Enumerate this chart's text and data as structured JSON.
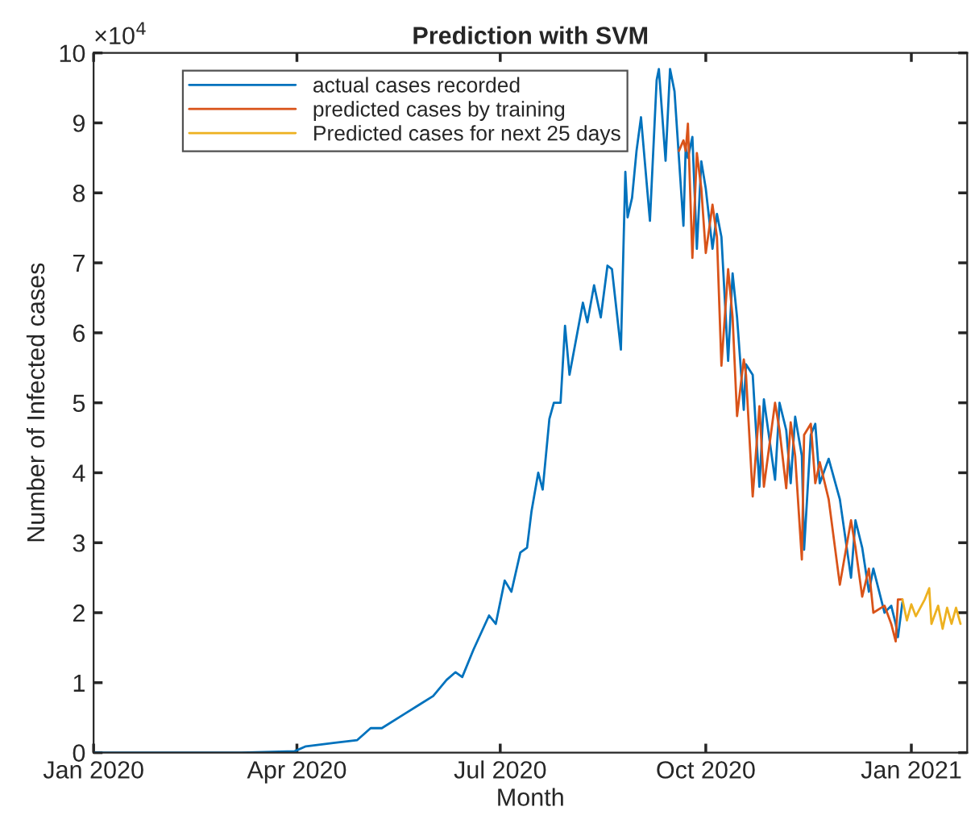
{
  "chart_data": {
    "type": "line",
    "title": "Prediction with SVM",
    "xlabel": "Month",
    "ylabel": "Number of Infected cases",
    "annotations": [
      "×10$^{4}$"
    ],
    "xlim": [
      "2020-01-01",
      "2021-01-26"
    ],
    "xticks": [
      {
        "value": "2020-01-01",
        "label": "Jan 2020"
      },
      {
        "value": "2020-04-01",
        "label": "Apr 2020"
      },
      {
        "value": "2020-07-01",
        "label": "Jul 2020"
      },
      {
        "value": "2020-10-01",
        "label": "Oct 2020"
      },
      {
        "value": "2021-01-01",
        "label": "Jan 2021"
      }
    ],
    "ylim": [
      0,
      10
    ],
    "yticks": [
      0,
      1,
      2,
      3,
      4,
      5,
      6,
      7,
      8,
      9,
      10
    ],
    "legend": "top left",
    "line_style": "solid",
    "series": [
      {
        "name": "actual cases recorded",
        "color": "#0072bd",
        "x": [
          "2020-01-01",
          "2020-03-07",
          "2020-03-31",
          "2020-04-05",
          "2020-04-18",
          "2020-04-28",
          "2020-05-04",
          "2020-05-09",
          "2020-05-19",
          "2020-05-26",
          "2020-06-01",
          "2020-06-07",
          "2020-06-11",
          "2020-06-14",
          "2020-06-19",
          "2020-06-26",
          "2020-06-29",
          "2020-07-03",
          "2020-07-06",
          "2020-07-10",
          "2020-07-13",
          "2020-07-15",
          "2020-07-18",
          "2020-07-20",
          "2020-07-23",
          "2020-07-25",
          "2020-07-28",
          "2020-07-30",
          "2020-08-01",
          "2020-08-07",
          "2020-08-09",
          "2020-08-12",
          "2020-08-15",
          "2020-08-18",
          "2020-08-20",
          "2020-08-24",
          "2020-08-26",
          "2020-08-27",
          "2020-08-29",
          "2020-08-31",
          "2020-09-02",
          "2020-09-06",
          "2020-09-09",
          "2020-09-10",
          "2020-09-13",
          "2020-09-15",
          "2020-09-17",
          "2020-09-21",
          "2020-09-22",
          "2020-09-23",
          "2020-09-25",
          "2020-09-27",
          "2020-09-29",
          "2020-10-01",
          "2020-10-04",
          "2020-10-06",
          "2020-10-08",
          "2020-10-11",
          "2020-10-13",
          "2020-10-15",
          "2020-10-18",
          "2020-10-19",
          "2020-10-22",
          "2020-10-25",
          "2020-10-27",
          "2020-11-01",
          "2020-11-03",
          "2020-11-06",
          "2020-11-08",
          "2020-11-10",
          "2020-11-13",
          "2020-11-14",
          "2020-11-17",
          "2020-11-19",
          "2020-11-21",
          "2020-11-25",
          "2020-11-30",
          "2020-12-05",
          "2020-12-07",
          "2020-12-10",
          "2020-12-13",
          "2020-12-15",
          "2020-12-20",
          "2020-12-23",
          "2020-12-25",
          "2020-12-26",
          "2020-12-28"
        ],
        "values": [
          0,
          0,
          0.02,
          0.09,
          0.14,
          0.18,
          0.35,
          0.35,
          0.55,
          0.69,
          0.81,
          1.04,
          1.15,
          1.08,
          1.47,
          1.96,
          1.84,
          2.46,
          2.3,
          2.86,
          2.93,
          3.45,
          4.0,
          3.76,
          4.77,
          5.0,
          5.0,
          6.1,
          5.4,
          6.43,
          6.15,
          6.68,
          6.22,
          6.96,
          6.91,
          5.76,
          8.3,
          7.65,
          7.93,
          8.6,
          9.08,
          7.6,
          9.61,
          9.77,
          8.46,
          9.77,
          9.45,
          7.53,
          8.64,
          8.5,
          8.8,
          7.2,
          8.45,
          8.06,
          7.2,
          7.7,
          7.37,
          5.6,
          6.85,
          6.22,
          4.9,
          5.55,
          5.4,
          3.8,
          5.05,
          3.9,
          5.0,
          4.61,
          3.85,
          4.8,
          4.24,
          2.9,
          4.54,
          4.7,
          3.85,
          4.2,
          3.62,
          2.5,
          3.32,
          2.93,
          2.3,
          2.63,
          2.0,
          2.1,
          1.84,
          1.65,
          2.15
        ]
      },
      {
        "name": "predicted cases by training",
        "color": "#d95319",
        "x": [
          "2020-09-19",
          "2020-09-21",
          "2020-09-22",
          "2020-09-23",
          "2020-09-25",
          "2020-09-27",
          "2020-09-29",
          "2020-10-01",
          "2020-10-04",
          "2020-10-06",
          "2020-10-08",
          "2020-10-11",
          "2020-10-13",
          "2020-10-15",
          "2020-10-18",
          "2020-10-19",
          "2020-10-22",
          "2020-10-25",
          "2020-10-27",
          "2020-11-01",
          "2020-11-03",
          "2020-11-06",
          "2020-11-08",
          "2020-11-10",
          "2020-11-13",
          "2020-11-14",
          "2020-11-17",
          "2020-11-19",
          "2020-11-21",
          "2020-11-25",
          "2020-11-30",
          "2020-12-05",
          "2020-12-07",
          "2020-12-10",
          "2020-12-13",
          "2020-12-15",
          "2020-12-20",
          "2020-12-23",
          "2020-12-25",
          "2020-12-26",
          "2020-12-28"
        ],
        "values": [
          8.6,
          8.75,
          8.6,
          8.99,
          7.07,
          8.57,
          8.06,
          7.14,
          7.83,
          7.37,
          5.53,
          6.91,
          6.22,
          4.81,
          5.62,
          5.4,
          3.66,
          4.95,
          3.8,
          5.0,
          4.61,
          3.78,
          4.72,
          4.24,
          2.76,
          4.54,
          4.7,
          3.85,
          4.15,
          3.62,
          2.4,
          3.32,
          2.93,
          2.23,
          2.63,
          2.0,
          2.1,
          1.84,
          1.59,
          2.19,
          2.19
        ]
      },
      {
        "name": "Predicted cases for next 25 days",
        "color": "#edb120",
        "x": [
          "2020-12-28",
          "2020-12-30",
          "2021-01-01",
          "2021-01-03",
          "2021-01-07",
          "2021-01-09",
          "2021-01-10",
          "2021-01-13",
          "2021-01-15",
          "2021-01-17",
          "2021-01-19",
          "2021-01-21",
          "2021-01-23"
        ],
        "values": [
          2.19,
          1.89,
          2.12,
          1.95,
          2.19,
          2.35,
          1.84,
          2.1,
          1.77,
          2.07,
          1.84,
          2.07,
          1.84
        ]
      }
    ]
  }
}
